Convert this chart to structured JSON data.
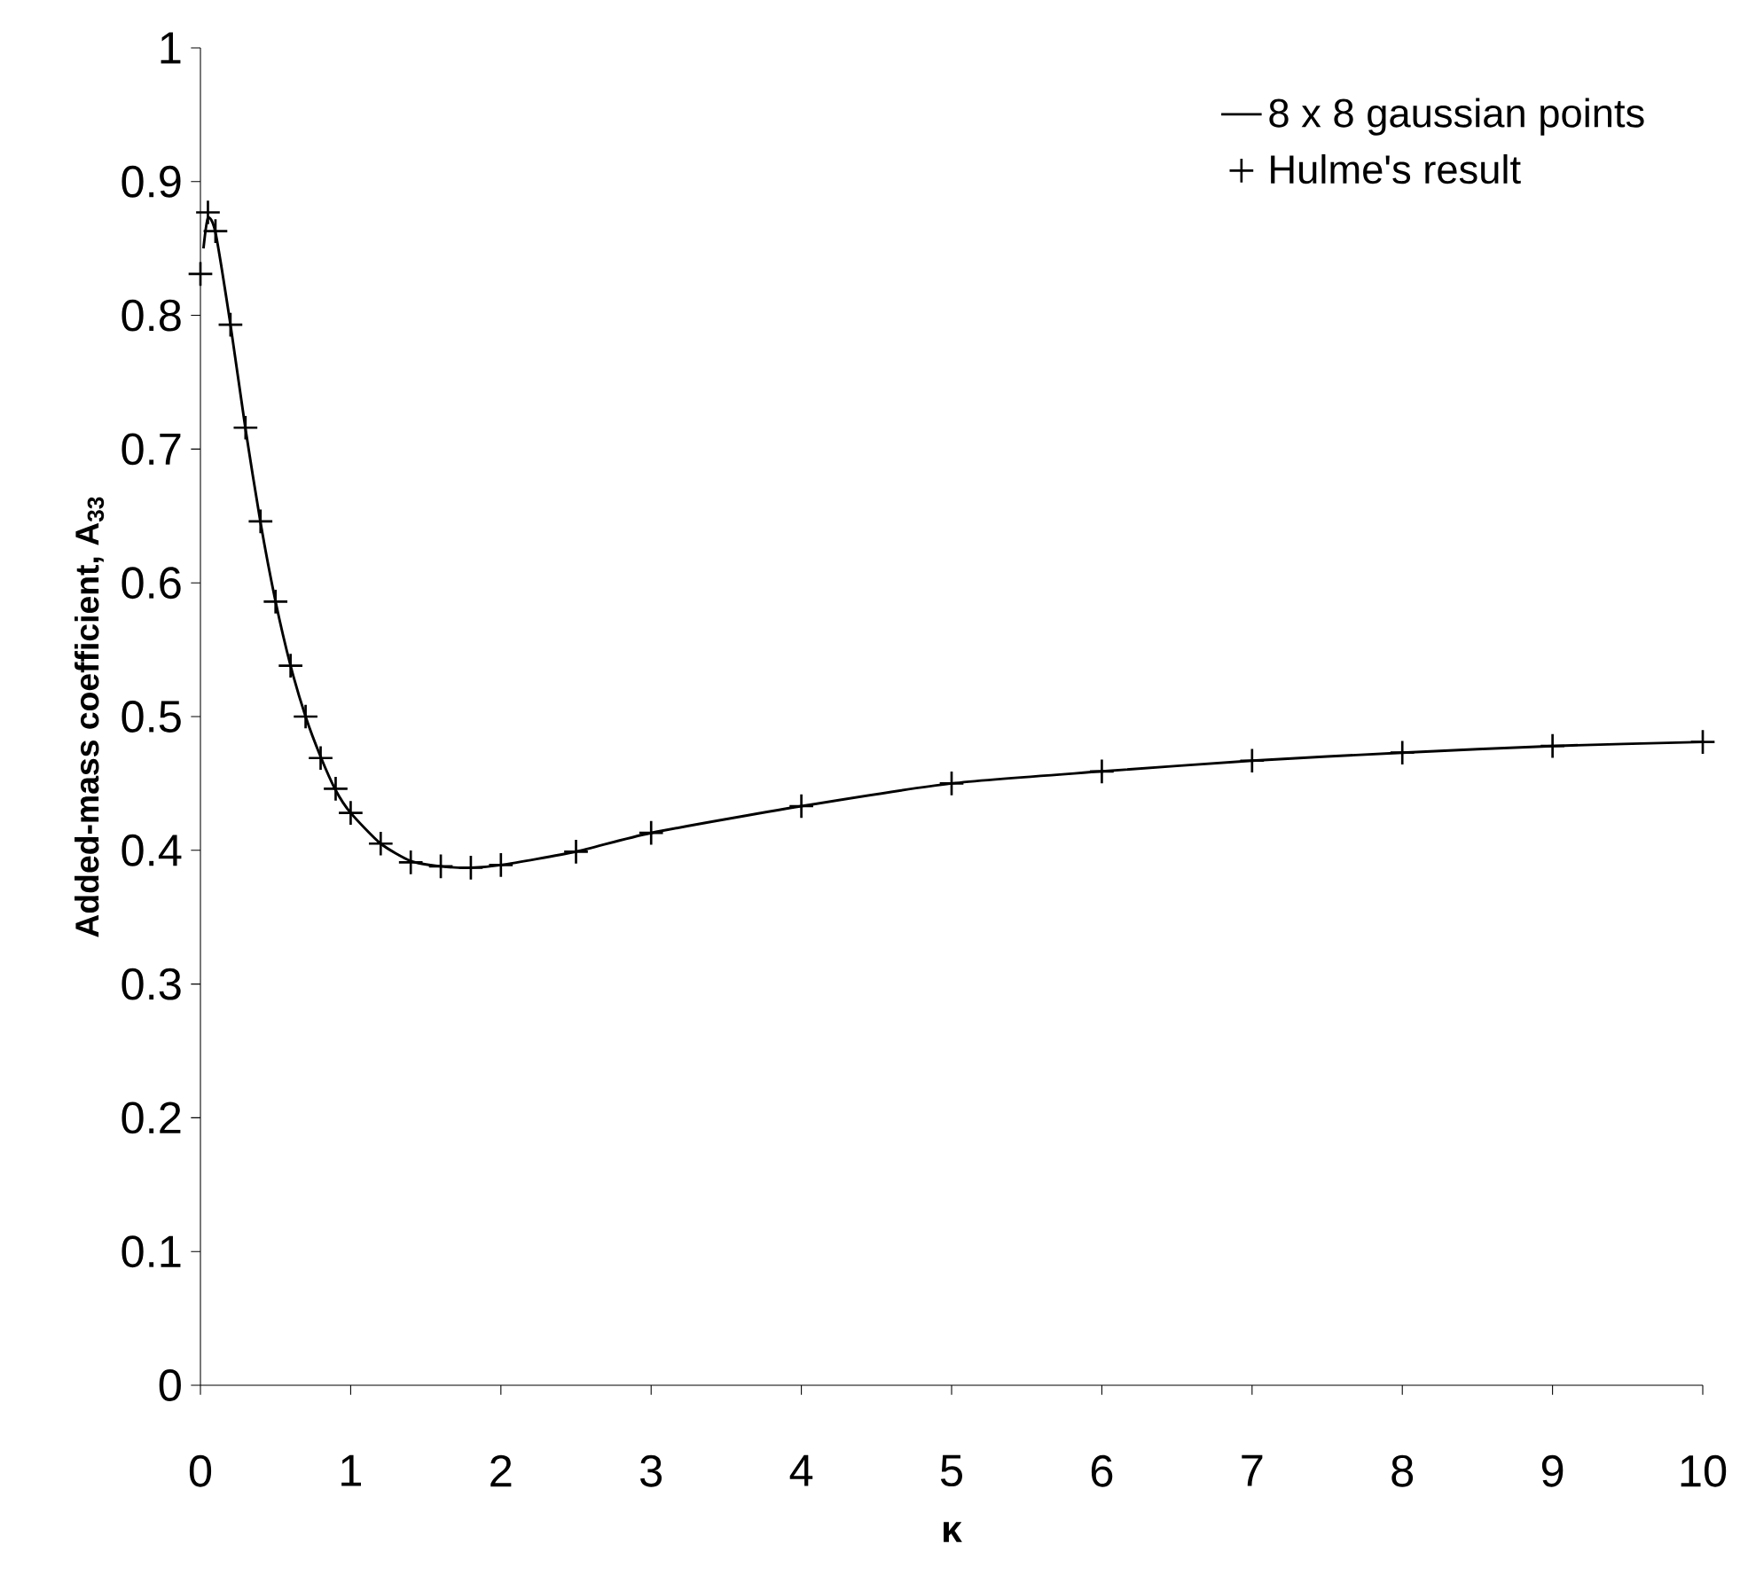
{
  "chart_data": {
    "type": "line",
    "xlabel": "κ",
    "ylabel": "Added-mass coefficient, A$_{33}$",
    "xlim": [
      0,
      10
    ],
    "ylim": [
      0,
      1
    ],
    "xticks": [
      0,
      1,
      2,
      3,
      4,
      5,
      6,
      7,
      8,
      9,
      10
    ],
    "yticks": [
      0,
      0.1,
      0.2,
      0.3,
      0.4,
      0.5,
      0.6,
      0.7,
      0.8,
      0.9,
      1
    ],
    "legend": "top right",
    "grid": false,
    "series": [
      {
        "name": "8 x 8 gaussian points",
        "type": "line",
        "color": "#000000",
        "line_style": "solid",
        "x": [
          0.02,
          0.05,
          0.1,
          0.2,
          0.3,
          0.4,
          0.5,
          0.6,
          0.7,
          0.8,
          0.9,
          1.0,
          1.2,
          1.4,
          1.6,
          1.8,
          2.0,
          2.5,
          3,
          4,
          5,
          6,
          7,
          8,
          9,
          10
        ],
        "values": [
          0.85,
          0.873,
          0.862,
          0.793,
          0.715,
          0.645,
          0.586,
          0.538,
          0.5,
          0.47,
          0.445,
          0.428,
          0.405,
          0.392,
          0.388,
          0.387,
          0.389,
          0.399,
          0.413,
          0.433,
          0.45,
          0.459,
          0.467,
          0.473,
          0.478,
          0.481
        ]
      },
      {
        "name": "Hulme's result",
        "type": "scatter",
        "color": "#000000",
        "marker": "cross",
        "x": [
          0,
          0.05,
          0.1,
          0.2,
          0.3,
          0.4,
          0.5,
          0.6,
          0.7,
          0.8,
          0.9,
          1.0,
          1.2,
          1.4,
          1.6,
          1.8,
          2.0,
          2.5,
          3,
          4,
          5,
          6,
          7,
          8,
          9,
          10
        ],
        "values": [
          0.831,
          0.877,
          0.863,
          0.793,
          0.716,
          0.646,
          0.586,
          0.538,
          0.5,
          0.469,
          0.446,
          0.428,
          0.405,
          0.391,
          0.388,
          0.387,
          0.389,
          0.399,
          0.413,
          0.433,
          0.45,
          0.459,
          0.467,
          0.473,
          0.478,
          0.481
        ]
      }
    ]
  }
}
